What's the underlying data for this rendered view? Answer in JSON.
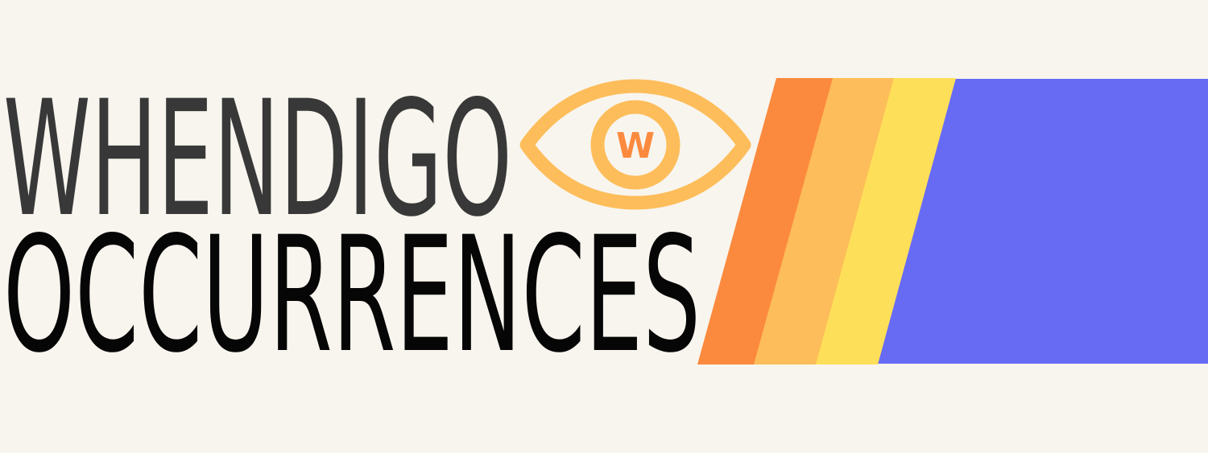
{
  "brand": {
    "line1": "WHENDIGO",
    "line2": "OCCURRENCES",
    "eye_letter": "W"
  },
  "icons": [
    "eye-icon"
  ],
  "colors": {
    "background": "#f8f5ee",
    "line1_text": "#383838",
    "line2_text": "#060606",
    "eye_outline": "#fdbd5a",
    "eye_letter": "#fb8a3e",
    "stripe_orange": "#fb8a3e",
    "stripe_light_orange": "#fdbd5a",
    "stripe_yellow": "#fedf5a",
    "stripe_blue": "#676bf4"
  }
}
